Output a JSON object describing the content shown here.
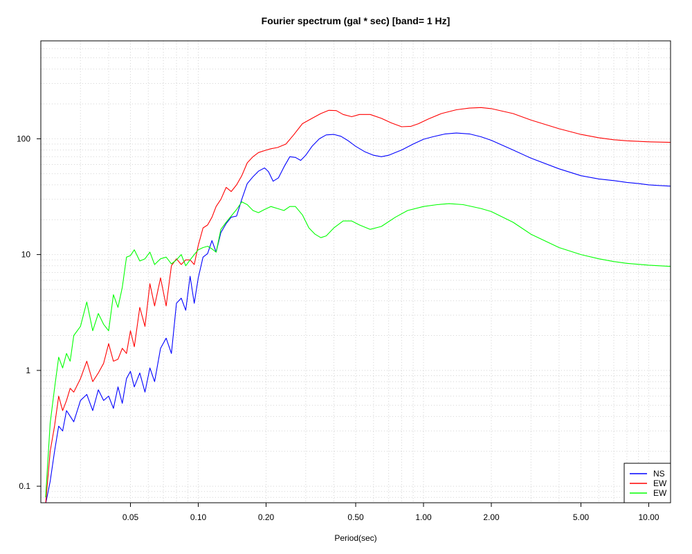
{
  "chart_data": {
    "type": "line",
    "title": "Fourier spectrum (gal * sec) [band= 1 Hz]",
    "xlabel": "Period(sec)",
    "ylabel": "",
    "xscale": "log",
    "yscale": "log",
    "xlim": [
      0.02,
      12.5
    ],
    "ylim": [
      0.072,
      700
    ],
    "xticks": [
      0.05,
      0.1,
      0.2,
      0.5,
      1,
      2,
      5,
      10
    ],
    "xtick_labels": [
      "0.05",
      "0.10",
      "0.20",
      "0.50",
      "1.00",
      "2.00",
      "5.00",
      "10.00"
    ],
    "yticks": [
      0.1,
      1,
      10,
      100
    ],
    "ytick_labels": [
      "0.1",
      "1",
      "10",
      "100"
    ],
    "grid": true,
    "legend_position": "bottom-right",
    "series": [
      {
        "name": "NS",
        "color": "#0000ff",
        "x": [
          0.021,
          0.022,
          0.023,
          0.024,
          0.025,
          0.026,
          0.028,
          0.03,
          0.032,
          0.034,
          0.036,
          0.038,
          0.04,
          0.042,
          0.044,
          0.046,
          0.048,
          0.05,
          0.052,
          0.055,
          0.058,
          0.061,
          0.064,
          0.068,
          0.072,
          0.076,
          0.08,
          0.084,
          0.088,
          0.092,
          0.096,
          0.1,
          0.105,
          0.11,
          0.115,
          0.12,
          0.126,
          0.133,
          0.14,
          0.148,
          0.156,
          0.165,
          0.175,
          0.185,
          0.197,
          0.205,
          0.215,
          0.227,
          0.24,
          0.255,
          0.27,
          0.285,
          0.3,
          0.32,
          0.345,
          0.37,
          0.4,
          0.43,
          0.46,
          0.5,
          0.55,
          0.6,
          0.65,
          0.7,
          0.75,
          0.8,
          0.9,
          1.0,
          1.1,
          1.25,
          1.4,
          1.6,
          1.8,
          2.0,
          2.5,
          3.0,
          4.0,
          5.0,
          6.0,
          7.0,
          8.0,
          9.0,
          10.0,
          11.0,
          12.5
        ],
        "y": [
          0.07,
          0.11,
          0.2,
          0.33,
          0.3,
          0.45,
          0.36,
          0.55,
          0.62,
          0.45,
          0.68,
          0.55,
          0.6,
          0.47,
          0.72,
          0.52,
          0.85,
          0.98,
          0.72,
          0.95,
          0.65,
          1.05,
          0.8,
          1.55,
          1.9,
          1.4,
          3.8,
          4.2,
          3.3,
          6.5,
          3.8,
          6.3,
          9.5,
          10.2,
          13.2,
          10.5,
          15.5,
          18.5,
          21.0,
          21.5,
          30.0,
          41.0,
          47.0,
          52.5,
          56.0,
          52.0,
          43.0,
          46.0,
          57.0,
          70.0,
          69.0,
          65.0,
          72.0,
          86.0,
          100.0,
          108.0,
          109.0,
          105.0,
          97.0,
          86.0,
          77.0,
          72.0,
          70.0,
          72.0,
          76.0,
          80.0,
          90.0,
          99.0,
          104.0,
          110.0,
          112.0,
          110.0,
          104.0,
          97.0,
          80.0,
          68.0,
          55.0,
          48.0,
          45.0,
          43.5,
          42.0,
          41.0,
          40.0,
          39.5,
          39.0
        ]
      },
      {
        "name": "EW",
        "color": "#ff0000",
        "x": [
          0.021,
          0.022,
          0.023,
          0.024,
          0.025,
          0.026,
          0.027,
          0.028,
          0.03,
          0.032,
          0.034,
          0.036,
          0.038,
          0.04,
          0.042,
          0.044,
          0.046,
          0.048,
          0.05,
          0.052,
          0.055,
          0.058,
          0.061,
          0.064,
          0.068,
          0.072,
          0.076,
          0.08,
          0.084,
          0.088,
          0.092,
          0.096,
          0.1,
          0.105,
          0.11,
          0.115,
          0.12,
          0.126,
          0.133,
          0.14,
          0.148,
          0.156,
          0.165,
          0.175,
          0.185,
          0.197,
          0.21,
          0.225,
          0.245,
          0.265,
          0.29,
          0.32,
          0.35,
          0.38,
          0.41,
          0.44,
          0.48,
          0.52,
          0.58,
          0.65,
          0.72,
          0.8,
          0.88,
          0.95,
          1.05,
          1.2,
          1.4,
          1.6,
          1.8,
          2.0,
          2.5,
          3.0,
          4.0,
          5.0,
          6.0,
          7.0,
          8.0,
          10.0,
          12.5
        ],
        "y": [
          0.07,
          0.2,
          0.33,
          0.6,
          0.45,
          0.55,
          0.7,
          0.65,
          0.85,
          1.2,
          0.8,
          0.95,
          1.15,
          1.7,
          1.2,
          1.25,
          1.55,
          1.4,
          2.2,
          1.6,
          3.5,
          2.4,
          5.6,
          3.6,
          6.3,
          3.6,
          8.0,
          9.2,
          8.2,
          9.0,
          9.0,
          8.2,
          12.0,
          17.0,
          18.0,
          21.0,
          26.0,
          30.0,
          38.0,
          35.0,
          40.0,
          48.0,
          62.0,
          70.0,
          76.0,
          79.0,
          82.0,
          84.0,
          90.0,
          108.0,
          135.0,
          150.0,
          165.0,
          176.0,
          175.0,
          162.0,
          155.0,
          162.0,
          162.0,
          150.0,
          137.0,
          127.0,
          128.0,
          135.0,
          148.0,
          165.0,
          178.0,
          184.0,
          186.0,
          182.0,
          165.0,
          145.0,
          122.0,
          109.0,
          102.0,
          98.0,
          96.0,
          94.0,
          93.0
        ]
      },
      {
        "name": "EW",
        "color": "#00ff00",
        "x": [
          0.021,
          0.022,
          0.023,
          0.024,
          0.025,
          0.026,
          0.027,
          0.028,
          0.03,
          0.032,
          0.034,
          0.036,
          0.038,
          0.04,
          0.042,
          0.044,
          0.046,
          0.048,
          0.05,
          0.052,
          0.055,
          0.058,
          0.061,
          0.064,
          0.068,
          0.072,
          0.076,
          0.08,
          0.084,
          0.088,
          0.092,
          0.096,
          0.1,
          0.105,
          0.11,
          0.115,
          0.12,
          0.126,
          0.133,
          0.14,
          0.148,
          0.156,
          0.165,
          0.175,
          0.185,
          0.197,
          0.21,
          0.225,
          0.24,
          0.255,
          0.27,
          0.29,
          0.31,
          0.33,
          0.35,
          0.37,
          0.4,
          0.44,
          0.48,
          0.52,
          0.58,
          0.65,
          0.75,
          0.85,
          1.0,
          1.15,
          1.3,
          1.5,
          1.8,
          2.0,
          2.5,
          3.0,
          4.0,
          5.0,
          6.0,
          7.0,
          8.0,
          10.0,
          12.5
        ],
        "y": [
          0.08,
          0.35,
          0.7,
          1.3,
          1.05,
          1.4,
          1.2,
          2.0,
          2.4,
          3.9,
          2.2,
          3.1,
          2.5,
          2.2,
          4.5,
          3.5,
          5.2,
          9.5,
          9.8,
          11.0,
          8.8,
          9.2,
          10.5,
          8.2,
          9.2,
          9.5,
          8.3,
          9.0,
          10.0,
          8.0,
          9.0,
          10.0,
          11.0,
          11.5,
          11.8,
          11.2,
          10.5,
          16.5,
          19.0,
          21.5,
          24.5,
          28.5,
          27.0,
          24.0,
          23.0,
          24.5,
          26.0,
          25.0,
          24.0,
          26.0,
          26.0,
          22.0,
          17.0,
          15.0,
          14.0,
          14.5,
          17.0,
          19.5,
          19.5,
          18.0,
          16.5,
          17.5,
          21.0,
          24.0,
          26.0,
          27.0,
          27.5,
          27.0,
          25.0,
          23.5,
          19.0,
          15.0,
          11.5,
          10.0,
          9.2,
          8.7,
          8.4,
          8.1,
          7.9
        ]
      }
    ]
  }
}
